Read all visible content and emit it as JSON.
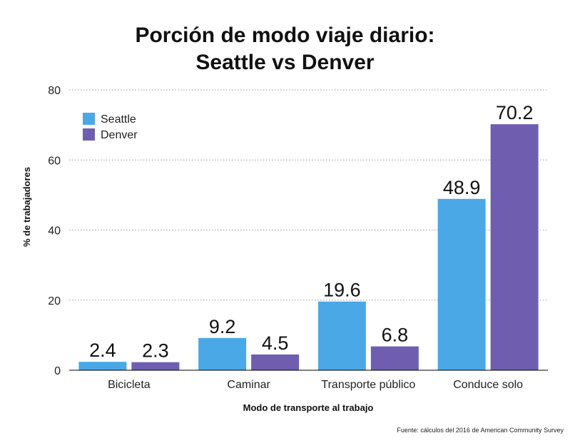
{
  "chart_data": {
    "type": "bar",
    "title_lines": [
      "Porción de modo viaje diario:",
      "Seattle vs Denver"
    ],
    "xlabel": "Modo de transporte al trabajo",
    "ylabel": "% de trabajadores",
    "ylim": [
      0,
      80
    ],
    "yticks": [
      0,
      20,
      40,
      60,
      80
    ],
    "grid": true,
    "legend_position": "top-left",
    "categories": [
      "Bicicleta",
      "Caminar",
      "Transporte público",
      "Conduce solo"
    ],
    "series": [
      {
        "name": "Seattle",
        "color": "#4AA8E7",
        "values": [
          2.4,
          9.2,
          19.6,
          48.9
        ]
      },
      {
        "name": "Denver",
        "color": "#6F5EB0",
        "values": [
          2.3,
          4.5,
          6.8,
          70.2
        ]
      }
    ],
    "source": "Fuente: cálculos del 2016 de American Community Survey"
  }
}
